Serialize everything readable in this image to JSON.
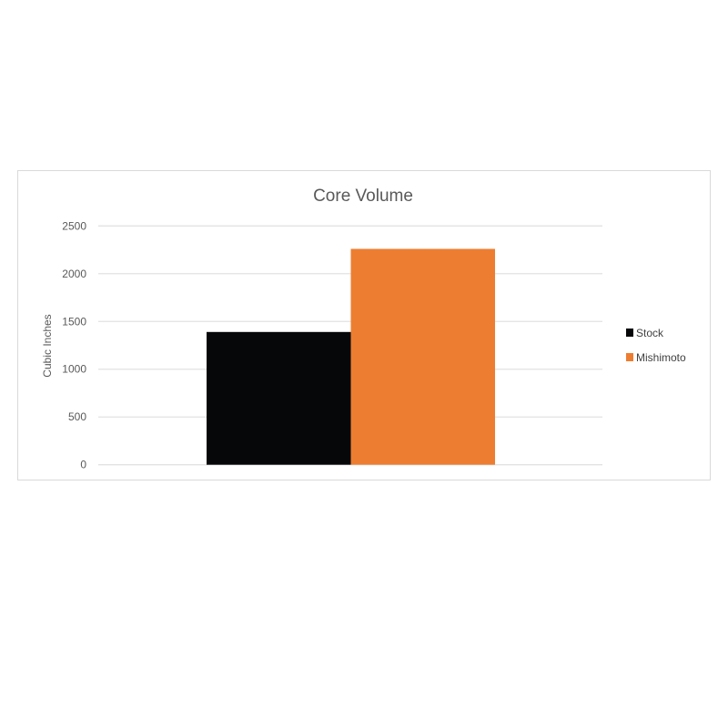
{
  "chart_data": {
    "type": "bar",
    "title": "Core Volume",
    "xlabel": "",
    "ylabel": "Cubic Inches",
    "categories": [
      ""
    ],
    "series": [
      {
        "name": "Stock",
        "values": [
          1390
        ],
        "color": "#060708"
      },
      {
        "name": "Mishimoto",
        "values": [
          2260
        ],
        "color": "#ed7d31"
      }
    ],
    "ylim": [
      0,
      2500
    ],
    "yticks": [
      0,
      500,
      1000,
      1500,
      2000,
      2500
    ],
    "grid": true,
    "legend_position": "right"
  }
}
